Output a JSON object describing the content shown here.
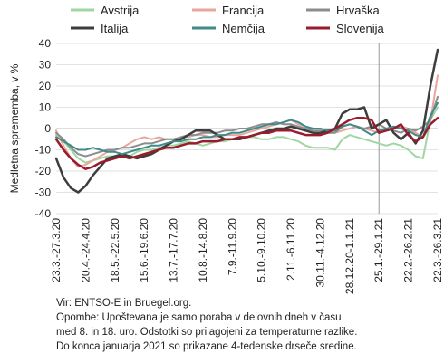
{
  "chart_data": {
    "type": "line",
    "ylabel": "Medletna sprememba, v %",
    "ylim": [
      -40,
      40
    ],
    "yticks": [
      40,
      30,
      20,
      10,
      0,
      -10,
      -20,
      -30,
      -40
    ],
    "grid": true,
    "legend_position": "top",
    "num_points": 53,
    "x_tick_labels": [
      "23.3.-27.3.20",
      "20.4.-24.4.20",
      "18.5.-22.5.20",
      "15.6.-19.6.20",
      "13.7.-17.7.20",
      "10.8.-14.8.20",
      "7.9.-11.9.20",
      "5.10.-9.10.20",
      "2.11.-6.11.20",
      "30.11.-4.12.20",
      "28.12.20-1.1.21",
      "25.1.-29.1.21",
      "22.2.-26.2.21",
      "22.3.-26.3.21"
    ],
    "x_tick_positions": [
      0,
      4,
      8,
      12,
      16,
      20,
      24,
      28,
      32,
      36,
      40,
      44,
      48,
      52
    ],
    "vertical_marker_index": 44,
    "series": [
      {
        "name": "Avstrija",
        "color": "#9fd6a3",
        "width": 2,
        "values": [
          -3,
          -6,
          -10,
          -14,
          -16,
          -15,
          -14,
          -13,
          -13,
          -12,
          -13,
          -11,
          -10,
          -10,
          -9,
          -8,
          -8,
          -7,
          -6,
          -7,
          -8,
          -7,
          -6,
          -6,
          -5,
          -5,
          -4,
          -4,
          -5,
          -5,
          -4,
          -4,
          -5,
          -6,
          -8,
          -9,
          -9,
          -9,
          -10,
          -5,
          -3,
          -4,
          -5,
          -6,
          -7,
          -8,
          -7,
          -8,
          -10,
          -13,
          -14,
          4,
          10
        ]
      },
      {
        "name": "Francija",
        "color": "#e8a79c",
        "width": 2,
        "values": [
          -1,
          -8,
          -14,
          -18,
          -17,
          -15,
          -13,
          -11,
          -10,
          -9,
          -7,
          -5,
          -4,
          -5,
          -4,
          -5,
          -5,
          -4,
          -4,
          -3,
          -3,
          -4,
          -4,
          -3,
          -3,
          -3,
          -2,
          -1,
          0,
          1,
          2,
          3,
          4,
          2,
          1,
          0,
          0,
          -1,
          -2,
          -1,
          0,
          1,
          0,
          -1,
          -2,
          -1,
          0,
          1,
          0,
          -2,
          -4,
          3,
          25
        ]
      },
      {
        "name": "Hrvaška",
        "color": "#8c8c8c",
        "width": 2,
        "values": [
          -2,
          -5,
          -9,
          -12,
          -13,
          -12,
          -11,
          -10,
          -10,
          -9,
          -9,
          -8,
          -7,
          -7,
          -6,
          -5,
          -5,
          -4,
          -3,
          -3,
          -2,
          -2,
          -2,
          -1,
          -1,
          0,
          0,
          1,
          2,
          2,
          3,
          2,
          2,
          1,
          0,
          -1,
          -1,
          -2,
          -2,
          1,
          2,
          1,
          0,
          1,
          2,
          0,
          -1,
          -2,
          0,
          -1,
          1,
          4,
          15
        ]
      },
      {
        "name": "Italija",
        "color": "#3d3d3d",
        "width": 2.5,
        "values": [
          -14,
          -23,
          -28,
          -30,
          -27,
          -22,
          -18,
          -14,
          -13,
          -12,
          -13,
          -14,
          -13,
          -12,
          -10,
          -8,
          -6,
          -5,
          -3,
          -1,
          -1,
          -1,
          -3,
          -5,
          -5,
          -5,
          -4,
          -3,
          -2,
          -1,
          0,
          0,
          1,
          0,
          -1,
          -2,
          -2,
          -1,
          0,
          7,
          9,
          9,
          10,
          0,
          2,
          4,
          -2,
          -5,
          -2,
          -7,
          -1,
          20,
          37
        ]
      },
      {
        "name": "Nemčija",
        "color": "#3f8a8a",
        "width": 2,
        "values": [
          -4,
          -6,
          -8,
          -10,
          -10,
          -9,
          -10,
          -11,
          -11,
          -12,
          -11,
          -10,
          -9,
          -8,
          -8,
          -7,
          -6,
          -6,
          -5,
          -5,
          -4,
          -4,
          -3,
          -3,
          -2,
          -2,
          -1,
          0,
          1,
          2,
          2,
          3,
          4,
          3,
          1,
          0,
          0,
          -1,
          -1,
          1,
          2,
          1,
          -1,
          -3,
          -1,
          0,
          1,
          0,
          -1,
          -3,
          -4,
          6,
          12
        ]
      },
      {
        "name": "Slovenija",
        "color": "#9a1b2c",
        "width": 2.5,
        "values": [
          -5,
          -10,
          -14,
          -17,
          -19,
          -18,
          -16,
          -15,
          -14,
          -13,
          -14,
          -13,
          -12,
          -11,
          -10,
          -9,
          -9,
          -8,
          -7,
          -7,
          -6,
          -6,
          -6,
          -5,
          -5,
          -4,
          -4,
          -3,
          -2,
          -2,
          -1,
          -1,
          -1,
          -2,
          -3,
          -3,
          -3,
          -2,
          0,
          2,
          4,
          5,
          5,
          4,
          -2,
          -1,
          0,
          2,
          -3,
          -6,
          -4,
          2,
          5
        ]
      }
    ]
  },
  "notes": {
    "source": "Vir: ENTSO-E in Bruegel.org.",
    "line1": "Opombe: Upoštevana je samo poraba v delovnih dneh v času",
    "line2": "med 8. in 18. uro. Odstotki so prilagojeni za temperaturne razlike.",
    "line3": "Do konca januarja 2021 so prikazane 4-tedenske drseče sredine."
  }
}
